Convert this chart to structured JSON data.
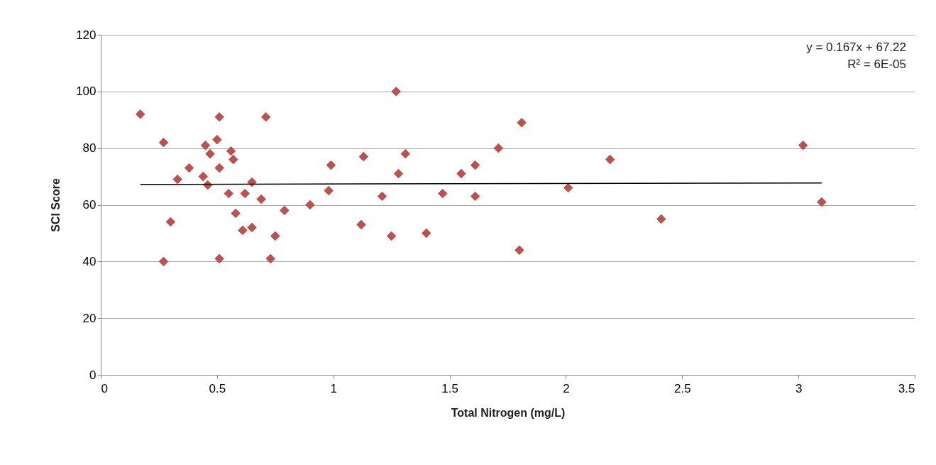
{
  "chart_data": {
    "type": "scatter",
    "xlabel": "Total Nitrogen (mg/L)",
    "ylabel": "SCI Score",
    "xlim": [
      0,
      3.5
    ],
    "xticks": [
      0,
      0.5,
      1,
      1.5,
      2,
      2.5,
      3,
      3.5
    ],
    "ylim": [
      0,
      120
    ],
    "yticks": [
      0,
      20,
      40,
      60,
      80,
      100,
      120
    ],
    "grid": "y",
    "annotations": [
      "y = 0.167x + 67.22",
      "R² = 6E-05"
    ],
    "series": [
      {
        "marker": "diamond",
        "color": "#c0504d",
        "x": [
          0.17,
          0.27,
          0.27,
          0.3,
          0.33,
          0.38,
          0.44,
          0.45,
          0.46,
          0.47,
          0.5,
          0.51,
          0.51,
          0.51,
          0.55,
          0.56,
          0.57,
          0.58,
          0.61,
          0.62,
          0.65,
          0.65,
          0.69,
          0.71,
          0.73,
          0.75,
          0.79,
          0.9,
          0.98,
          0.99,
          1.12,
          1.13,
          1.21,
          1.25,
          1.27,
          1.28,
          1.31,
          1.4,
          1.47,
          1.55,
          1.61,
          1.61,
          1.71,
          1.8,
          1.81,
          2.01,
          2.19,
          2.41,
          3.02,
          3.1
        ],
        "values": [
          92,
          82,
          40,
          54,
          69,
          73,
          70,
          81,
          67,
          78,
          83,
          91,
          73,
          41,
          64,
          79,
          76,
          57,
          51,
          64,
          68,
          52,
          62,
          91,
          41,
          49,
          58,
          60,
          65,
          74,
          53,
          77,
          63,
          49,
          100,
          71,
          78,
          50,
          64,
          71,
          63,
          74,
          80,
          44,
          89,
          66,
          76,
          55,
          81,
          61
        ]
      },
      {
        "type": "line",
        "color": "#000000",
        "x": [
          0.17,
          3.1
        ],
        "values": [
          67.2,
          67.7
        ]
      }
    ]
  }
}
